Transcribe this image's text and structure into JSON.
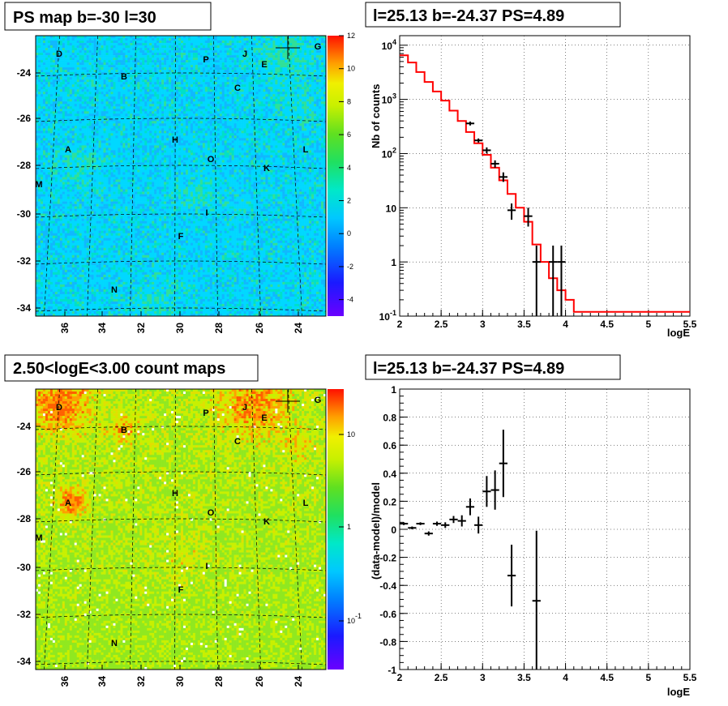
{
  "panels": {
    "tl": {
      "title": "PS map b=-30 l=30"
    },
    "tr": {
      "title": "l=25.13 b=-24.37 PS=4.89"
    },
    "bl": {
      "title": "2.50<logE<3.00 count maps"
    },
    "br": {
      "title": "l=25.13 b=-24.37 PS=4.89"
    }
  },
  "sources": [
    "D",
    "P",
    "J",
    "E",
    "G",
    "B",
    "C",
    "A",
    "H",
    "O",
    "L",
    "M",
    "K",
    "I",
    "F",
    "N"
  ],
  "chart_data": [
    {
      "type": "heatmap",
      "title": "PS map b=-30 l=30",
      "x_ticks": [
        "36",
        "34",
        "32",
        "30",
        "28",
        "26",
        "24"
      ],
      "y_ticks": [
        "-24",
        "-26",
        "-28",
        "-30",
        "-32",
        "-34"
      ],
      "colorbar": {
        "scale": "linear",
        "range": [
          -5,
          12
        ],
        "ticks": [
          "12",
          "10",
          "8",
          "6",
          "4",
          "2",
          "0",
          "-2",
          "-4"
        ]
      }
    },
    {
      "type": "line",
      "title": "l=25.13 b=-24.37 PS=4.89",
      "xlabel": "logE",
      "ylabel": "Nb of counts",
      "yscale": "log",
      "xlim": [
        2,
        5.5
      ],
      "ylim": [
        0.1,
        15000
      ],
      "x_ticks": [
        "2",
        "2.5",
        "3",
        "3.5",
        "4",
        "4.5",
        "5",
        "5.5"
      ],
      "y_ticks": [
        "10^-1",
        "1",
        "10",
        "10^2",
        "10^3",
        "10^4"
      ],
      "grid": true,
      "model": {
        "edges": [
          2.0,
          2.1,
          2.2,
          2.3,
          2.4,
          2.5,
          2.6,
          2.7,
          2.8,
          2.9,
          3.0,
          3.1,
          3.2,
          3.3,
          3.4,
          3.5,
          3.6,
          3.7,
          3.8,
          3.9,
          4.0,
          4.1,
          5.5
        ],
        "values": [
          6500,
          4800,
          3200,
          2100,
          1400,
          950,
          620,
          400,
          250,
          155,
          95,
          55,
          32,
          18,
          10,
          5.5,
          2.1,
          1.0,
          0.5,
          0.3,
          0.2,
          0.12
        ]
      },
      "data": [
        {
          "x": 2.85,
          "y": 360,
          "ylo": 330,
          "yhi": 390
        },
        {
          "x": 2.95,
          "y": 175,
          "ylo": 160,
          "yhi": 190
        },
        {
          "x": 3.05,
          "y": 115,
          "ylo": 100,
          "yhi": 130
        },
        {
          "x": 3.15,
          "y": 65,
          "ylo": 55,
          "yhi": 75
        },
        {
          "x": 3.25,
          "y": 37,
          "ylo": 30,
          "yhi": 45
        },
        {
          "x": 3.35,
          "y": 9,
          "ylo": 6,
          "yhi": 12
        },
        {
          "x": 3.55,
          "y": 7,
          "ylo": 4.5,
          "yhi": 10
        },
        {
          "x": 3.65,
          "y": 1,
          "ylo": 0.1,
          "yhi": 2
        },
        {
          "x": 3.85,
          "y": 1,
          "ylo": 0.1,
          "yhi": 2
        },
        {
          "x": 3.95,
          "y": 1,
          "ylo": 0.1,
          "yhi": 2
        }
      ]
    },
    {
      "type": "heatmap",
      "title": "2.50<logE<3.00 count maps",
      "x_ticks": [
        "36",
        "34",
        "32",
        "30",
        "28",
        "26",
        "24"
      ],
      "y_ticks": [
        "-24",
        "-26",
        "-28",
        "-30",
        "-32",
        "-34"
      ],
      "colorbar": {
        "scale": "log",
        "ticks": [
          "10",
          "1",
          "10^-1"
        ]
      }
    },
    {
      "type": "scatter",
      "title": "l=25.13 b=-24.37 PS=4.89",
      "xlabel": "logE",
      "ylabel": "(data-model)/model",
      "xlim": [
        2,
        5.5
      ],
      "ylim": [
        -1,
        1
      ],
      "x_ticks": [
        "2",
        "2.5",
        "3",
        "3.5",
        "4",
        "4.5",
        "5",
        "5.5"
      ],
      "y_ticks": [
        "1",
        "0.8",
        "0.6",
        "0.4",
        "0.2",
        "0",
        "-0.2",
        "-0.4",
        "-0.6",
        "-0.8",
        "-1"
      ],
      "grid": true,
      "points": [
        {
          "x": 2.05,
          "y": 0.04,
          "err": 0.01
        },
        {
          "x": 2.15,
          "y": 0.01,
          "err": 0.01
        },
        {
          "x": 2.25,
          "y": 0.04,
          "err": 0.01
        },
        {
          "x": 2.35,
          "y": -0.03,
          "err": 0.015
        },
        {
          "x": 2.45,
          "y": 0.04,
          "err": 0.015
        },
        {
          "x": 2.55,
          "y": 0.03,
          "err": 0.02
        },
        {
          "x": 2.65,
          "y": 0.07,
          "err": 0.025
        },
        {
          "x": 2.75,
          "y": 0.06,
          "err": 0.04
        },
        {
          "x": 2.85,
          "y": 0.16,
          "err": 0.06
        },
        {
          "x": 2.95,
          "y": 0.03,
          "err": 0.06
        },
        {
          "x": 3.05,
          "y": 0.27,
          "err": 0.11
        },
        {
          "x": 3.15,
          "y": 0.28,
          "err": 0.14
        },
        {
          "x": 3.25,
          "y": 0.47,
          "err": 0.24
        },
        {
          "x": 3.35,
          "y": -0.33,
          "err": 0.22
        },
        {
          "x": 3.65,
          "y": -0.51,
          "err": 0.5
        }
      ]
    }
  ]
}
